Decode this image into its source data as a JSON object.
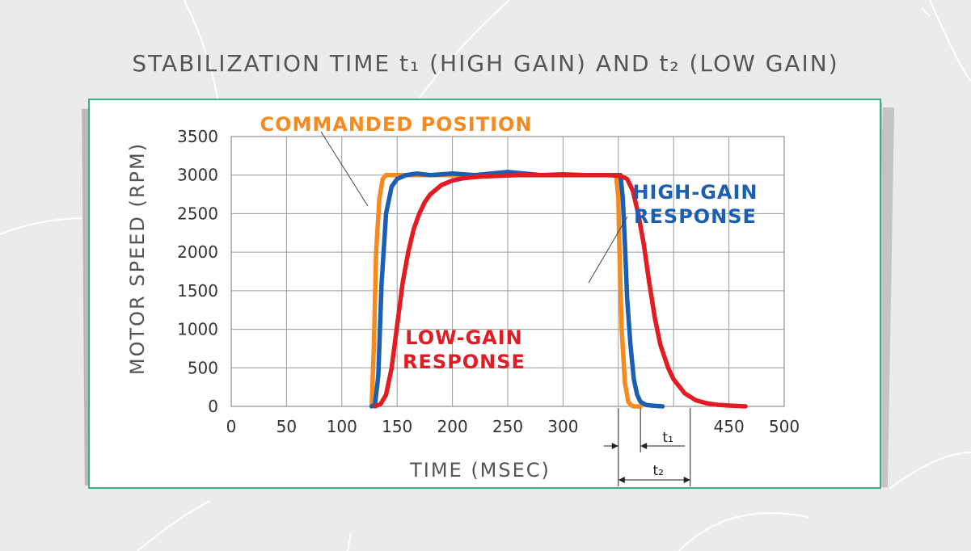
{
  "title": "STABILIZATION TIME t₁ (HIGH GAIN) AND t₂ (LOW GAIN)",
  "chart_data": {
    "type": "line",
    "xlabel": "TIME (MSEC)",
    "ylabel": "MOTOR SPEED (RPM)",
    "xlim": [
      0,
      500
    ],
    "ylim": [
      0,
      3500
    ],
    "x_ticks": [
      "0",
      "50",
      "100",
      "150",
      "200",
      "250",
      "300",
      "450",
      "500"
    ],
    "x_tick_values": [
      0,
      50,
      100,
      150,
      200,
      250,
      300,
      450,
      500
    ],
    "y_ticks": [
      "0",
      "500",
      "1000",
      "1500",
      "2000",
      "2500",
      "3000",
      "3500"
    ],
    "y_tick_values": [
      0,
      500,
      1000,
      1500,
      2000,
      2500,
      3000,
      3500
    ],
    "grid": true,
    "series": [
      {
        "name": "COMMANDED POSITION",
        "color": "#f68a1f",
        "x": [
          127,
          129,
          131,
          134,
          137,
          140,
          146,
          160,
          200,
          250,
          300,
          348,
          350,
          351,
          353,
          356,
          359,
          362,
          364,
          370
        ],
        "y": [
          0,
          800,
          2000,
          2700,
          2950,
          3000,
          3000,
          3000,
          3000,
          3000,
          3000,
          3000,
          2700,
          2000,
          1000,
          300,
          60,
          10,
          0,
          0
        ]
      },
      {
        "name": "HIGH-GAIN RESPONSE",
        "color": "#1a5fb4",
        "x": [
          127,
          130,
          133,
          136,
          140,
          145,
          150,
          158,
          168,
          180,
          200,
          220,
          250,
          280,
          300,
          320,
          352,
          354,
          356,
          358,
          361,
          364,
          367,
          370,
          375,
          380,
          385,
          390
        ],
        "y": [
          0,
          20,
          400,
          1600,
          2500,
          2850,
          2950,
          3000,
          3020,
          3000,
          3020,
          3000,
          3040,
          3000,
          3010,
          3000,
          3000,
          2700,
          2100,
          1400,
          800,
          350,
          150,
          60,
          20,
          10,
          5,
          0
        ]
      },
      {
        "name": "LOW-GAIN RESPONSE",
        "color": "#e31b23",
        "x": [
          130,
          135,
          140,
          145,
          150,
          155,
          160,
          165,
          170,
          175,
          180,
          190,
          200,
          210,
          225,
          240,
          260,
          280,
          300,
          320,
          340,
          352,
          358,
          363,
          368,
          373,
          378,
          383,
          388,
          395,
          400,
          410,
          420,
          430,
          440,
          450,
          465
        ],
        "y": [
          0,
          30,
          150,
          500,
          1050,
          1600,
          2000,
          2300,
          2500,
          2650,
          2750,
          2870,
          2930,
          2960,
          2980,
          2990,
          3000,
          3000,
          3000,
          3000,
          3000,
          2990,
          2950,
          2800,
          2500,
          2100,
          1600,
          1150,
          800,
          500,
          350,
          170,
          80,
          40,
          20,
          10,
          0
        ]
      }
    ],
    "annotations": [
      {
        "text_lines": [
          "COMMANDED POSITION"
        ],
        "color": "#f68a1f"
      },
      {
        "text_lines": [
          "HIGH-GAIN",
          "RESPONSE"
        ],
        "color": "#1a5fb4"
      },
      {
        "text_lines": [
          "LOW-GAIN",
          "RESPONSE"
        ],
        "color": "#e31b23"
      }
    ],
    "intervals": [
      {
        "label": "t₁",
        "from": 350,
        "to": 370
      },
      {
        "label": "t₂",
        "from": 350,
        "to": 415
      }
    ]
  }
}
